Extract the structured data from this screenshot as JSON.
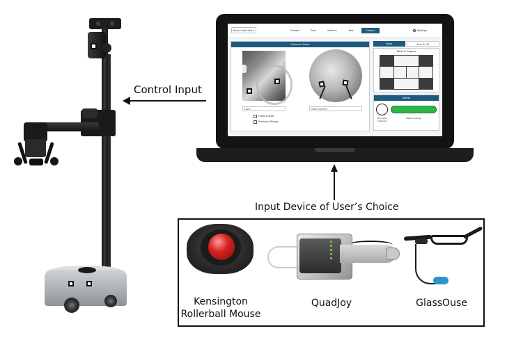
{
  "labels": {
    "control_input": "Control Input",
    "input_device": "Input Device of User’s Choice"
  },
  "devices": [
    {
      "name_line1": "Kensington",
      "name_line2": "Rollerball Mouse"
    },
    {
      "name_line1": "QuadJoy",
      "name_line2": ""
    },
    {
      "name_line1": "GlassOuse",
      "name_line2": ""
    }
  ],
  "screen": {
    "mode_dropdown": "Press-hold Hold ▾",
    "speeds": [
      "Slowest",
      "Slow",
      "Medium",
      "Fast",
      "Fastest"
    ],
    "active_speed": "Fastest",
    "settings_label": "Settings",
    "camera_header": "Camera Views",
    "left_select": "Look...",
    "right_select": "Gaze Camera...",
    "check_follow": "Follow Gripper",
    "check_predictive": "Predictive Display",
    "tabs": [
      "Base",
      "Arm & Lift"
    ],
    "active_tab": "Base",
    "wrist_title": "Wrist & Gripper",
    "safety_title": "Safety",
    "runstop_label": "Run Stop Disabled",
    "battery_label": "Battery Gauge"
  },
  "colors": {
    "ui_accent": "#1e5a7e",
    "battery_ok": "#2fb44a",
    "trackball_ball": "#d52323",
    "glassouse_plug": "#2a97c9"
  }
}
